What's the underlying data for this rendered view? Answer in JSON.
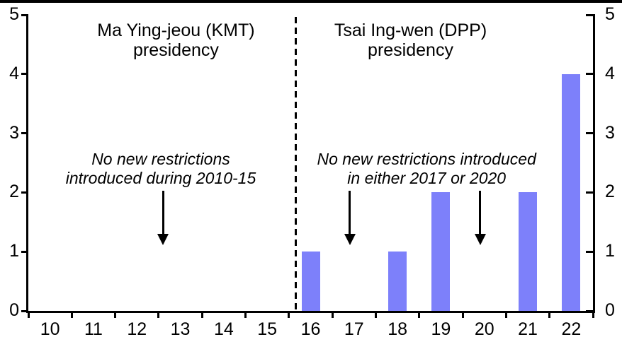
{
  "chart_data": {
    "type": "bar",
    "title": "",
    "xlabel": "",
    "ylabel": "",
    "categories": [
      "10",
      "11",
      "12",
      "13",
      "14",
      "15",
      "16",
      "17",
      "18",
      "19",
      "20",
      "21",
      "22"
    ],
    "values": [
      0,
      0,
      0,
      0,
      0,
      0,
      1,
      0,
      1,
      2,
      0,
      2,
      4
    ],
    "ylim": [
      0,
      5
    ],
    "yticks": [
      0,
      1,
      2,
      3,
      4,
      5
    ],
    "grid": false,
    "legend": "none",
    "dual_y_axis": true,
    "bar_color": "#7d80fa",
    "axis_color": "#000000",
    "divider": {
      "style": "dashed",
      "at_year": 15.66
    },
    "regions": [
      {
        "lines": [
          "Ma Ying-jeou (KMT)",
          "presidency"
        ],
        "center_year": 12.9
      },
      {
        "lines": [
          "Tsai Ing-wen (DPP)",
          "presidency"
        ],
        "center_year": 18.3
      }
    ],
    "annotations": [
      {
        "lines": [
          "No new restrictions",
          "introduced during 2010-15"
        ],
        "center_year": 12.55,
        "arrows_at_years": [
          12.6
        ]
      },
      {
        "lines": [
          "No new restrictions introduced",
          "in either 2017 or 2020"
        ],
        "center_year": 18.67,
        "arrows_at_years": [
          16.9,
          19.9
        ]
      }
    ]
  }
}
